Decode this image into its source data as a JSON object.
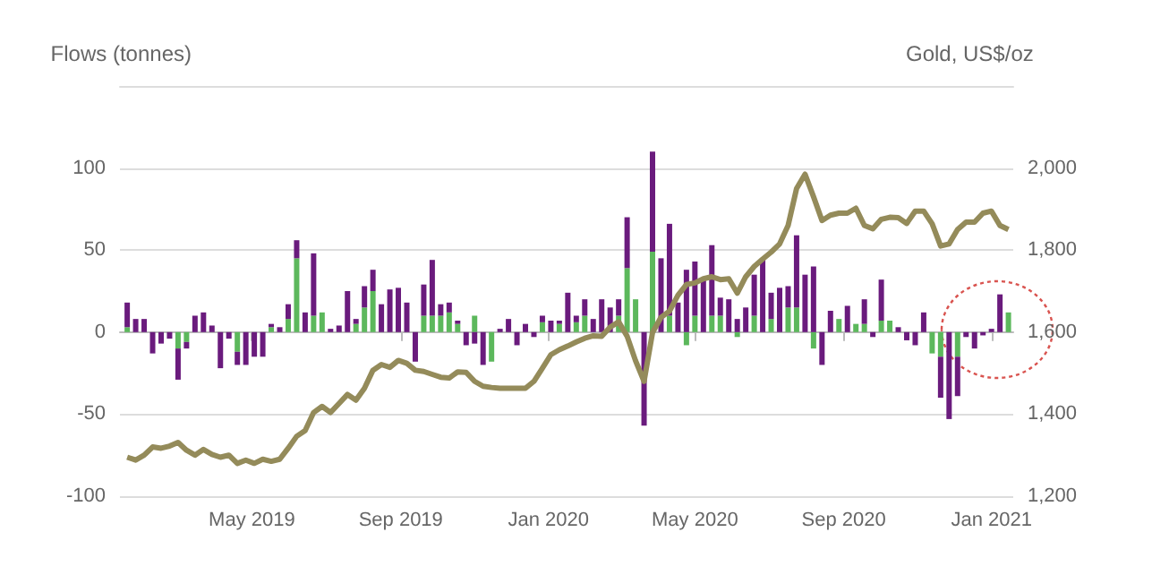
{
  "chart_data": {
    "type": "bar",
    "stacked": true,
    "ylabel": "Flows (tonnes)",
    "y2label": "Gold, US$/oz",
    "x": [
      "2019-01-18",
      "2019-01-25",
      "2019-02-01",
      "2019-02-08",
      "2019-02-15",
      "2019-02-22",
      "2019-03-01",
      "2019-03-08",
      "2019-03-15",
      "2019-03-22",
      "2019-03-29",
      "2019-04-05",
      "2019-04-12",
      "2019-04-19",
      "2019-04-26",
      "2019-05-03",
      "2019-05-10",
      "2019-05-17",
      "2019-05-24",
      "2019-05-31",
      "2019-06-07",
      "2019-06-14",
      "2019-06-21",
      "2019-06-28",
      "2019-07-05",
      "2019-07-12",
      "2019-07-19",
      "2019-07-26",
      "2019-08-02",
      "2019-08-09",
      "2019-08-16",
      "2019-08-23",
      "2019-08-30",
      "2019-09-06",
      "2019-09-13",
      "2019-09-20",
      "2019-09-27",
      "2019-10-04",
      "2019-10-11",
      "2019-10-18",
      "2019-10-25",
      "2019-11-01",
      "2019-11-08",
      "2019-11-15",
      "2019-11-22",
      "2019-11-29",
      "2019-12-06",
      "2019-12-13",
      "2019-12-20",
      "2019-12-27",
      "2020-01-03",
      "2020-01-10",
      "2020-01-17",
      "2020-01-24",
      "2020-01-31",
      "2020-02-07",
      "2020-02-14",
      "2020-02-21",
      "2020-02-28",
      "2020-03-06",
      "2020-03-13",
      "2020-03-20",
      "2020-03-27",
      "2020-04-03",
      "2020-04-10",
      "2020-04-17",
      "2020-04-24",
      "2020-05-01",
      "2020-05-08",
      "2020-05-15",
      "2020-05-22",
      "2020-05-29",
      "2020-06-05",
      "2020-06-12",
      "2020-06-19",
      "2020-06-26",
      "2020-07-03",
      "2020-07-10",
      "2020-07-17",
      "2020-07-24",
      "2020-07-31",
      "2020-08-07",
      "2020-08-14",
      "2020-08-21",
      "2020-08-28",
      "2020-09-04",
      "2020-09-11",
      "2020-09-18",
      "2020-09-25",
      "2020-10-02",
      "2020-10-09",
      "2020-10-16",
      "2020-10-23",
      "2020-10-30",
      "2020-11-06",
      "2020-11-13",
      "2020-11-20",
      "2020-11-27",
      "2020-12-04",
      "2020-12-11",
      "2020-12-18",
      "2020-12-25",
      "2021-01-01",
      "2021-01-08",
      "2021-01-15"
    ],
    "series": [
      {
        "color": "#5cb85c",
        "values": [
          3,
          0,
          0,
          0,
          0,
          0,
          -10,
          -6,
          0,
          0,
          0,
          0,
          0,
          -12,
          0,
          0,
          0,
          3,
          0,
          8,
          45,
          0,
          10,
          12,
          0,
          0,
          0,
          5,
          15,
          25,
          0,
          0,
          0,
          0,
          0,
          10,
          10,
          10,
          12,
          5,
          0,
          10,
          0,
          -18,
          0,
          0,
          0,
          0,
          0,
          6,
          0,
          5,
          0,
          6,
          10,
          0,
          0,
          0,
          10,
          39,
          20,
          0,
          49,
          0,
          10,
          0,
          -8,
          10,
          0,
          10,
          10,
          0,
          -3,
          0,
          10,
          0,
          8,
          0,
          15,
          15,
          0,
          -10,
          0,
          0,
          8,
          0,
          5,
          5,
          0,
          7,
          7,
          0,
          0,
          0,
          0,
          -13,
          -15,
          0,
          -15,
          0,
          0,
          0,
          0,
          0,
          12
        ]
      },
      {
        "color": "#6a1b7d",
        "values": [
          15,
          8,
          8,
          -13,
          -7,
          -4,
          -19,
          -4,
          10,
          12,
          4,
          -22,
          -4,
          -8,
          -20,
          -15,
          -15,
          2,
          3,
          9,
          11,
          12,
          38,
          0,
          2,
          4,
          25,
          3,
          13,
          13,
          17,
          26,
          27,
          18,
          -18,
          19,
          34,
          7,
          6,
          2,
          -8,
          -7,
          -20,
          0,
          2,
          8,
          -8,
          5,
          -3,
          4,
          7,
          2,
          24,
          4,
          10,
          8,
          20,
          15,
          10,
          31,
          0,
          -57,
          61,
          45,
          56,
          18,
          38,
          33,
          33,
          43,
          11,
          20,
          8,
          15,
          25,
          45,
          16,
          27,
          13,
          44,
          35,
          40,
          -20,
          13,
          0,
          16,
          0,
          15,
          -3,
          25,
          0,
          3,
          -5,
          -8,
          12,
          0,
          -25,
          -53,
          -24,
          -3,
          -10,
          -2,
          2,
          23,
          0
        ]
      },
      {
        "type": "line",
        "axis": "y2",
        "color": "#948b5a",
        "values": [
          1295,
          1288,
          1300,
          1320,
          1317,
          1322,
          1331,
          1312,
          1300,
          1314,
          1302,
          1295,
          1300,
          1280,
          1288,
          1280,
          1290,
          1285,
          1290,
          1317,
          1346,
          1360,
          1404,
          1419,
          1404,
          1426,
          1448,
          1434,
          1463,
          1507,
          1521,
          1514,
          1531,
          1524,
          1507,
          1504,
          1497,
          1490,
          1488,
          1503,
          1502,
          1480,
          1468,
          1465,
          1463,
          1463,
          1463,
          1463,
          1480,
          1512,
          1545,
          1557,
          1566,
          1576,
          1585,
          1591,
          1590,
          1612,
          1625,
          1590,
          1530,
          1480,
          1599,
          1636,
          1651,
          1690,
          1716,
          1720,
          1730,
          1735,
          1728,
          1730,
          1695,
          1735,
          1760,
          1778,
          1795,
          1815,
          1860,
          1950,
          1985,
          1930,
          1872,
          1885,
          1890,
          1890,
          1902,
          1860,
          1852,
          1875,
          1880,
          1879,
          1865,
          1895,
          1895,
          1864,
          1810,
          1815,
          1850,
          1868,
          1868,
          1890,
          1895,
          1860,
          1850
        ]
      }
    ],
    "xlim": [
      "2019-01-12",
      "2021-01-19"
    ],
    "xticks": [
      {
        "value": "2019-05-01",
        "label": "May 2019"
      },
      {
        "value": "2019-09-01",
        "label": "Sep 2019"
      },
      {
        "value": "2020-01-01",
        "label": "Jan 2020"
      },
      {
        "value": "2020-05-01",
        "label": "May 2020"
      },
      {
        "value": "2020-09-01",
        "label": "Sep 2020"
      },
      {
        "value": "2021-01-01",
        "label": "Jan 2021"
      }
    ],
    "ylim": [
      -100,
      150
    ],
    "yticks": [
      -100,
      -50,
      0,
      50,
      100
    ],
    "y2lim": [
      1200,
      2200
    ],
    "y2ticks": [
      {
        "value": 1200,
        "label": "1,200"
      },
      {
        "value": 1400,
        "label": "1,400"
      },
      {
        "value": 1600,
        "label": "1,600"
      },
      {
        "value": 1800,
        "label": "1,800"
      },
      {
        "value": 2000,
        "label": "2,000"
      }
    ],
    "grid": "y",
    "marker": "none",
    "line_style": "solid"
  }
}
